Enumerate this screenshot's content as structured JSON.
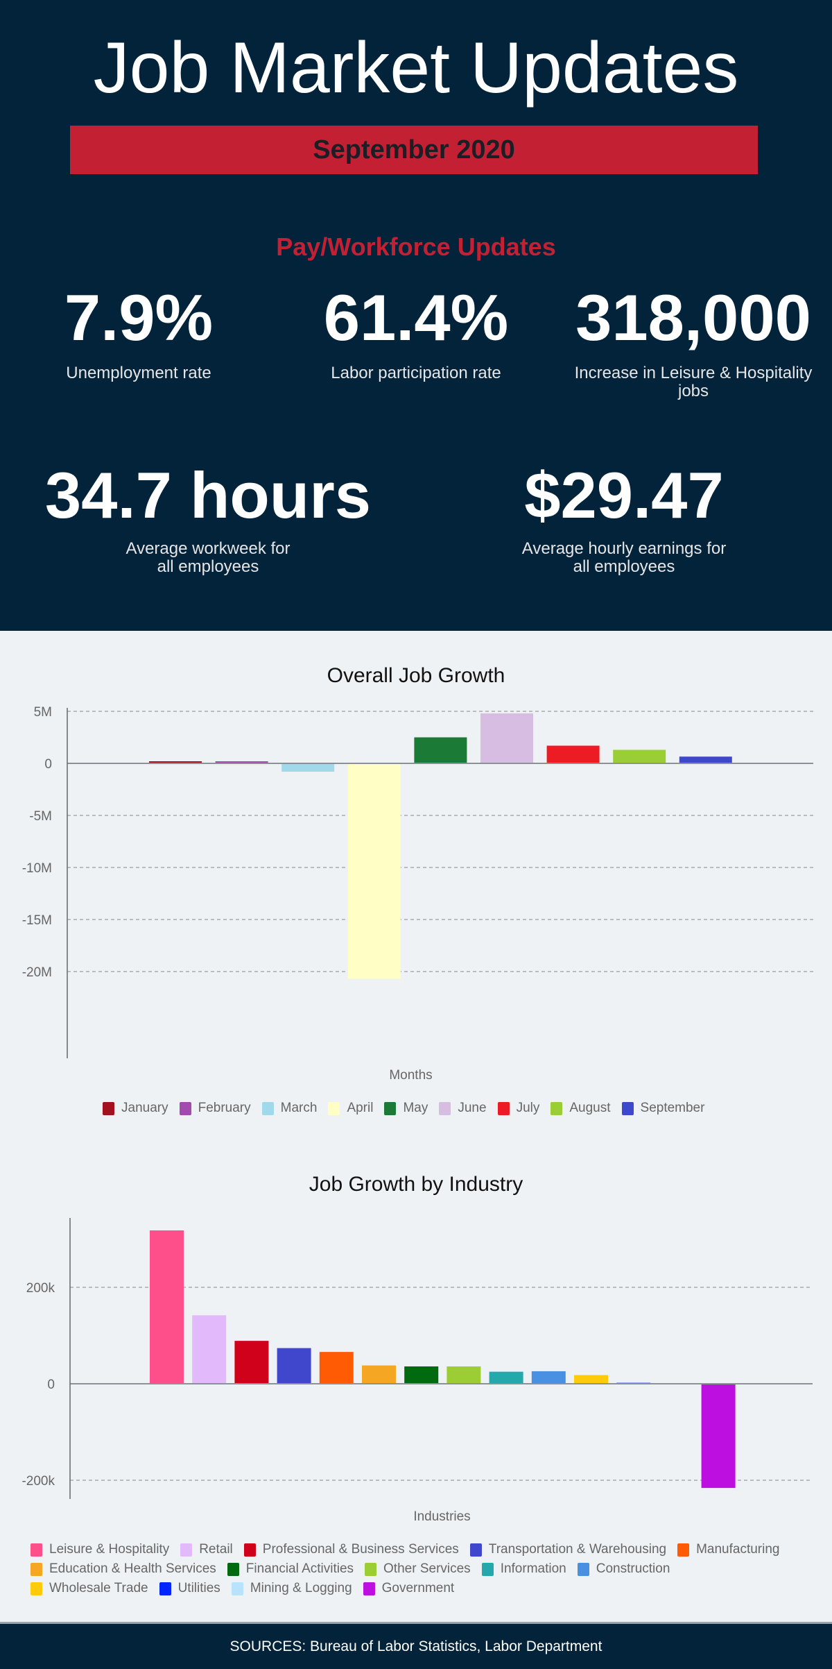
{
  "header": {
    "title": "Job Market Updates",
    "date_banner": "September 2020",
    "section_title": "Pay/Workforce Updates",
    "stats": [
      {
        "value": "7.9%",
        "label": "Unemployment rate"
      },
      {
        "value": "61.4%",
        "label": "Labor participation rate"
      },
      {
        "value": "318,000",
        "label": "Increase in Leisure & Hospitality jobs"
      },
      {
        "value": "34.7 hours",
        "label": "Average workweek for all employees"
      },
      {
        "value": "$29.47",
        "label": "Average hourly earnings for all employees"
      }
    ]
  },
  "colors": {
    "background_dark": "#03233a",
    "accent_red": "#c42033"
  },
  "chart_data": [
    {
      "type": "bar",
      "title": "Overall Job Growth",
      "xlabel": "Months",
      "ylabel": "",
      "ylim": [
        -21500000,
        6000000
      ],
      "yticks": [
        5000000,
        0,
        -5000000,
        -10000000,
        -15000000,
        -20000000
      ],
      "ytick_labels": [
        "5M",
        "0",
        "-5M",
        "-10M",
        "-15M",
        "-20M"
      ],
      "grid": true,
      "legend": "bottom",
      "categories": [
        "January",
        "February",
        "March",
        "April",
        "May",
        "June",
        "July",
        "August",
        "September"
      ],
      "values": [
        200000,
        200000,
        -800000,
        -20700000,
        2500000,
        4800000,
        1700000,
        1300000,
        650000
      ],
      "colors": [
        "#a3111f",
        "#a24aae",
        "#9fd9ea",
        "#ffffc5",
        "#1b7a36",
        "#d8bde3",
        "#ed1c24",
        "#9bcd35",
        "#3e48cc"
      ]
    },
    {
      "type": "bar",
      "title": "Job Growth by Industry",
      "xlabel": "Industries",
      "ylabel": "",
      "ylim": [
        -240000,
        340000
      ],
      "yticks": [
        200000,
        0,
        -200000
      ],
      "ytick_labels": [
        "200k",
        "0",
        "-200k"
      ],
      "grid": true,
      "legend": "bottom",
      "categories": [
        "Leisure & Hospitality",
        "Retail",
        "Professional & Business Services",
        "Transportation & Warehousing",
        "Manufacturing",
        "Education & Health Services",
        "Financial Activities",
        "Other Services",
        "Information",
        "Construction",
        "Wholesale Trade",
        "Utilities",
        "Mining & Logging",
        "Government"
      ],
      "values": [
        318000,
        142000,
        89000,
        74000,
        66000,
        38000,
        36000,
        36000,
        25000,
        26000,
        18000,
        2000,
        0,
        -216000
      ],
      "colors": [
        "#fe4f8a",
        "#e2b9fb",
        "#d0021b",
        "#4047cc",
        "#fe5b04",
        "#f5a623",
        "#006a10",
        "#9dcd35",
        "#25a8ac",
        "#4a90e2",
        "#fecb0b",
        "#0026ff",
        "#b8e3ff",
        "#bd10e0"
      ]
    }
  ],
  "footer": {
    "sources": "SOURCES: Bureau of Labor Statistics, Labor Department"
  }
}
